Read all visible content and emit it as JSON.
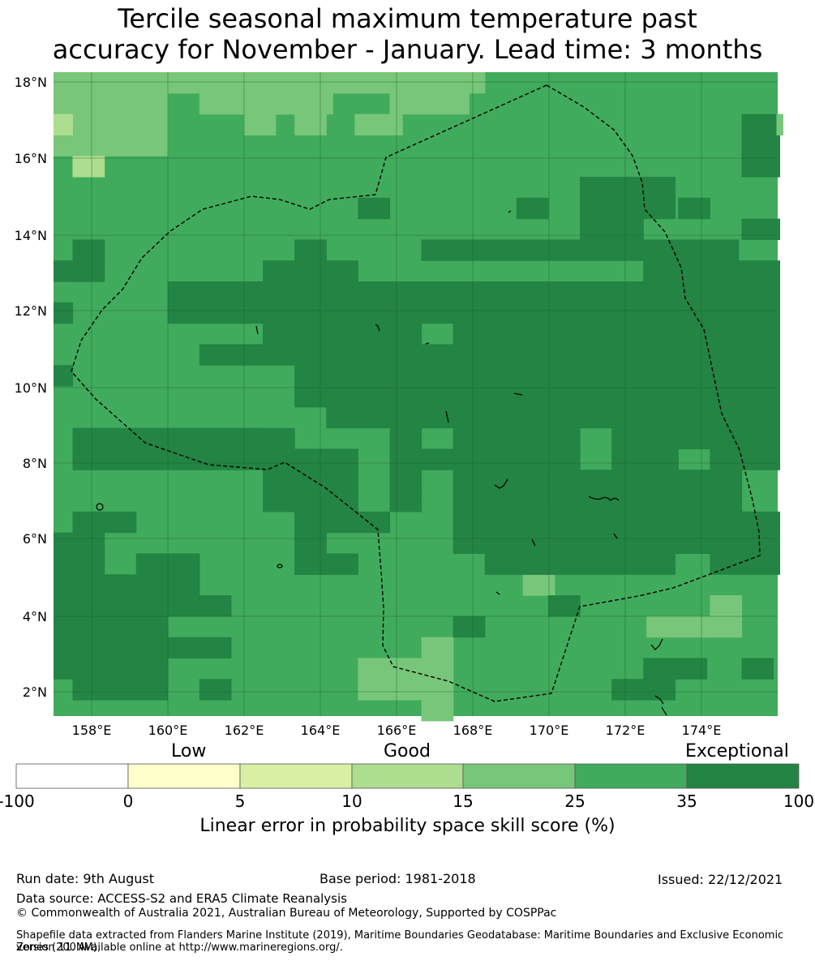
{
  "title": {
    "line1": "Tercile seasonal maximum temperature past",
    "line2": "accuracy for November - January. Lead time: 3 months"
  },
  "map": {
    "lat_labels": [
      "18°N",
      "16°N",
      "14°N",
      "12°N",
      "10°N",
      "8°N",
      "6°N",
      "4°N",
      "2°N"
    ],
    "lon_labels": [
      "158°E",
      "160°E",
      "162°E",
      "164°E",
      "166°E",
      "168°E",
      "170°E",
      "172°E",
      "174°E"
    ],
    "background_color": "#41ab5d"
  },
  "colorbar": {
    "categories": [
      "Low",
      "Good",
      "Exceptional"
    ],
    "ticks": [
      "-100",
      "0",
      "5",
      "10",
      "15",
      "25",
      "35",
      "100"
    ],
    "colors": [
      "#ffffff",
      "#ffffcc",
      "#d9f0a3",
      "#addd8e",
      "#78c679",
      "#41ab5d",
      "#238443"
    ],
    "title": "Linear error in probability space skill score (%)"
  },
  "footer": {
    "run_date": "Run date: 9th August",
    "base_period": "Base period: 1981-2018",
    "issued": "Issued: 22/12/2021",
    "data_source": "Data source: ACCESS-S2 and ERA5 Climate Reanalysis",
    "copyright": "© Commonwealth of Australia 2021, Australian Bureau of Meteorology, Supported by COSPPac",
    "shapefile_line1": "Shapefile data extracted from Flanders Marine Institute (2019), Maritime Boundaries Geodatabase: Maritime Boundaries and Exclusive Economic Zones (200NM),",
    "shapefile_line2": "version 11. Available online at http://www.marineregions.org/."
  }
}
